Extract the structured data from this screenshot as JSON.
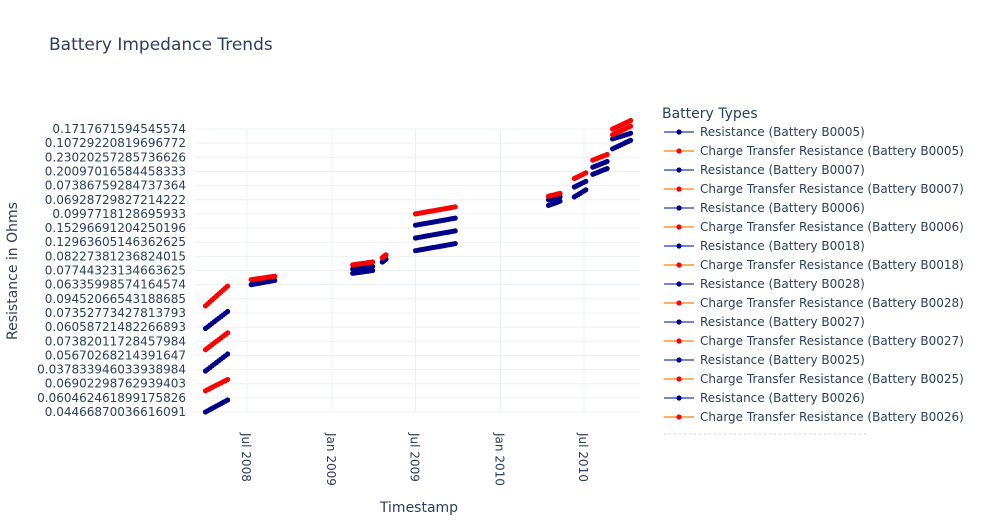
{
  "chart_data": {
    "type": "line",
    "title": "Battery Impedance Trends",
    "xlabel": "Timestamp",
    "ylabel": "Resistance in Ohms",
    "legend_title": "Battery Types",
    "legend_position": "right",
    "grid": true,
    "x_ticks": [
      {
        "label": "Jul 2008",
        "date": "2008-07-01"
      },
      {
        "label": "Jan 2009",
        "date": "2009-01-01"
      },
      {
        "label": "Jul 2009",
        "date": "2009-07-01"
      },
      {
        "label": "Jan 2010",
        "date": "2010-01-01"
      },
      {
        "label": "Jul 2010",
        "date": "2010-07-01"
      }
    ],
    "y_type": "category",
    "y_categories": [
      "0.04466870036616091",
      "0.060462461899175826",
      "0.06902298762939403",
      "0.037833946033938984",
      "0.05670268214391647",
      "0.07382011728457984",
      "0.06058721482266893",
      "0.07352773427813793",
      "0.09452066543188685",
      "0.06335998574164574",
      "0.07744323134663625",
      "0.08227381236824015",
      "0.12963605146362625",
      "0.15296691204250196",
      "0.0997718128695933",
      "0.06928729827214222",
      "0.07386759284737364",
      "0.20097016584458333",
      "0.23020257285736626",
      "0.10729220819696772",
      "0.1717671594545574"
    ],
    "series_style": {
      "Resistance": "#00008b",
      "Charge Transfer Resistance": "#ff0000",
      "legend_line_resistance": "#1f3fbf",
      "legend_line_charge": "#ff7f0e"
    },
    "legend": [
      "Resistance (Battery B0005)",
      "Charge Transfer Resistance (Battery B0005)",
      "Resistance (Battery B0007)",
      "Charge Transfer Resistance (Battery B0007)",
      "Resistance (Battery B0006)",
      "Charge Transfer Resistance (Battery B0006)",
      "Resistance (Battery B0018)",
      "Charge Transfer Resistance (Battery B0018)",
      "Resistance (Battery B0028)",
      "Charge Transfer Resistance (Battery B0028)",
      "Resistance (Battery B0027)",
      "Charge Transfer Resistance (Battery B0027)",
      "Resistance (Battery B0025)",
      "Charge Transfer Resistance (Battery B0025)",
      "Resistance (Battery B0026)",
      "Charge Transfer Resistance (Battery B0026)"
    ],
    "series": [
      {
        "color": "#00008b",
        "start": "2008-04-02",
        "end": "2008-05-20",
        "y_from": 0,
        "y_to": 0.85
      },
      {
        "color": "#ff0000",
        "start": "2008-04-02",
        "end": "2008-05-20",
        "y_from": 1.5,
        "y_to": 2.3
      },
      {
        "color": "#00008b",
        "start": "2008-04-02",
        "end": "2008-05-20",
        "y_from": 2.9,
        "y_to": 4.1
      },
      {
        "color": "#ff0000",
        "start": "2008-04-02",
        "end": "2008-05-20",
        "y_from": 4.4,
        "y_to": 5.6
      },
      {
        "color": "#00008b",
        "start": "2008-04-02",
        "end": "2008-05-20",
        "y_from": 5.9,
        "y_to": 7.1
      },
      {
        "color": "#ff0000",
        "start": "2008-04-02",
        "end": "2008-05-20",
        "y_from": 7.5,
        "y_to": 8.9
      },
      {
        "color": "#00008b",
        "start": "2008-07-10",
        "end": "2008-08-30",
        "y_from": 9.0,
        "y_to": 9.3
      },
      {
        "color": "#ff0000",
        "start": "2008-07-10",
        "end": "2008-08-30",
        "y_from": 9.35,
        "y_to": 9.6
      },
      {
        "color": "#00008b",
        "start": "2009-02-15",
        "end": "2009-03-30",
        "y_from": 9.8,
        "y_to": 10.0
      },
      {
        "color": "#00008b",
        "start": "2009-02-15",
        "end": "2009-03-30",
        "y_from": 10.1,
        "y_to": 10.3
      },
      {
        "color": "#ff0000",
        "start": "2009-02-15",
        "end": "2009-03-30",
        "y_from": 10.4,
        "y_to": 10.6
      },
      {
        "color": "#00008b",
        "start": "2009-04-20",
        "end": "2009-04-28",
        "y_from": 10.6,
        "y_to": 10.8
      },
      {
        "color": "#ff0000",
        "start": "2009-04-20",
        "end": "2009-04-28",
        "y_from": 10.9,
        "y_to": 11.1
      },
      {
        "color": "#00008b",
        "start": "2009-07-01",
        "end": "2009-09-25",
        "y_from": 11.4,
        "y_to": 11.9
      },
      {
        "color": "#00008b",
        "start": "2009-07-01",
        "end": "2009-09-25",
        "y_from": 12.3,
        "y_to": 12.8
      },
      {
        "color": "#00008b",
        "start": "2009-07-01",
        "end": "2009-09-25",
        "y_from": 13.2,
        "y_to": 13.7
      },
      {
        "color": "#ff0000",
        "start": "2009-07-01",
        "end": "2009-09-25",
        "y_from": 14.0,
        "y_to": 14.5
      },
      {
        "color": "#00008b",
        "start": "2010-04-15",
        "end": "2010-05-10",
        "y_from": 14.6,
        "y_to": 14.9
      },
      {
        "color": "#00008b",
        "start": "2010-04-15",
        "end": "2010-05-10",
        "y_from": 15.0,
        "y_to": 15.2
      },
      {
        "color": "#ff0000",
        "start": "2010-04-15",
        "end": "2010-05-10",
        "y_from": 15.25,
        "y_to": 15.45
      },
      {
        "color": "#00008b",
        "start": "2010-06-10",
        "end": "2010-07-05",
        "y_from": 15.2,
        "y_to": 15.7
      },
      {
        "color": "#00008b",
        "start": "2010-06-10",
        "end": "2010-07-05",
        "y_from": 15.9,
        "y_to": 16.3
      },
      {
        "color": "#ff0000",
        "start": "2010-06-10",
        "end": "2010-07-05",
        "y_from": 16.5,
        "y_to": 16.9
      },
      {
        "color": "#00008b",
        "start": "2010-07-20",
        "end": "2010-08-20",
        "y_from": 16.8,
        "y_to": 17.2
      },
      {
        "color": "#00008b",
        "start": "2010-07-20",
        "end": "2010-08-20",
        "y_from": 17.3,
        "y_to": 17.7
      },
      {
        "color": "#ff0000",
        "start": "2010-07-20",
        "end": "2010-08-20",
        "y_from": 17.8,
        "y_to": 18.2
      },
      {
        "color": "#00008b",
        "start": "2010-09-01",
        "end": "2010-10-10",
        "y_from": 18.6,
        "y_to": 19.2
      },
      {
        "color": "#00008b",
        "start": "2010-09-01",
        "end": "2010-10-10",
        "y_from": 19.3,
        "y_to": 19.7
      },
      {
        "color": "#ff0000",
        "start": "2010-09-01",
        "end": "2010-10-10",
        "y_from": 19.6,
        "y_to": 20.2
      },
      {
        "color": "#ff0000",
        "start": "2010-09-01",
        "end": "2010-10-10",
        "y_from": 20.0,
        "y_to": 20.6
      }
    ]
  }
}
